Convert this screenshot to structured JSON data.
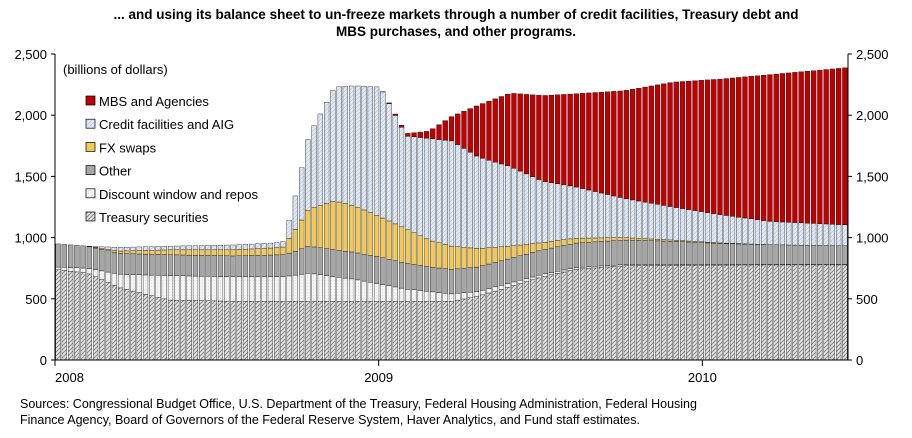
{
  "title": {
    "line1": "... and using its balance sheet to un-freeze markets through a number of credit facilities, Treasury debt and",
    "line2": "MBS purchases, and other programs."
  },
  "sources": {
    "line1": "Sources:  Congressional Budget Office, U.S. Department of the Treasury, Federal Housing Administration, Federal Housing",
    "line2": "Finance  Agency, Board of Governors of the Federal Reserve System, Haver Analytics, and Fund staff estimates."
  },
  "colors": {
    "mbs": "#c00000",
    "credit": "#dce6f2",
    "fx": "#f2c85a",
    "other": "#a6a6a6",
    "discount": "#f0f0f0",
    "treasury": "#cfcfcf"
  },
  "chart_data": {
    "type": "bar",
    "stacked": true,
    "unit_label": "(billions of dollars)",
    "ylim": [
      0,
      2500
    ],
    "yticks": [
      0,
      500,
      1000,
      1500,
      2000,
      2500
    ],
    "ytick_labels": [
      "0",
      "500",
      "1,000",
      "1,500",
      "2,000",
      "2,500"
    ],
    "ytick_labels_right": [
      "0",
      "500",
      "1,000",
      "1,500",
      "2,000",
      "2,500"
    ],
    "x_range": [
      2008.0,
      2010.45
    ],
    "xticks": [
      2008,
      2009,
      2010
    ],
    "xtick_labels": [
      "2008",
      "2009",
      "2010"
    ],
    "grid": false,
    "legend_position": "top-left",
    "bar_interval_years": 0.0192,
    "keyframes": [
      {
        "t": 2008.0,
        "treasury": 740,
        "discount": 20,
        "other": 190,
        "fx": 0,
        "credit": 0,
        "mbs": 0
      },
      {
        "t": 2008.1,
        "treasury": 710,
        "discount": 40,
        "other": 180,
        "fx": 0,
        "credit": 0,
        "mbs": 0
      },
      {
        "t": 2008.2,
        "treasury": 590,
        "discount": 110,
        "other": 170,
        "fx": 20,
        "credit": 30,
        "mbs": 0
      },
      {
        "t": 2008.35,
        "treasury": 490,
        "discount": 200,
        "other": 170,
        "fx": 40,
        "credit": 30,
        "mbs": 0
      },
      {
        "t": 2008.55,
        "treasury": 480,
        "discount": 200,
        "other": 170,
        "fx": 50,
        "credit": 40,
        "mbs": 0
      },
      {
        "t": 2008.7,
        "treasury": 480,
        "discount": 200,
        "other": 180,
        "fx": 60,
        "credit": 40,
        "mbs": 0
      },
      {
        "t": 2008.73,
        "treasury": 480,
        "discount": 210,
        "other": 190,
        "fx": 150,
        "credit": 200,
        "mbs": 0
      },
      {
        "t": 2008.78,
        "treasury": 480,
        "discount": 230,
        "other": 220,
        "fx": 300,
        "credit": 600,
        "mbs": 0
      },
      {
        "t": 2008.86,
        "treasury": 480,
        "discount": 200,
        "other": 220,
        "fx": 400,
        "credit": 930,
        "mbs": 0
      },
      {
        "t": 2008.92,
        "treasury": 480,
        "discount": 180,
        "other": 220,
        "fx": 380,
        "credit": 980,
        "mbs": 0
      },
      {
        "t": 2009.0,
        "treasury": 480,
        "discount": 140,
        "other": 220,
        "fx": 330,
        "credit": 1060,
        "mbs": 0
      },
      {
        "t": 2009.08,
        "treasury": 480,
        "discount": 100,
        "other": 210,
        "fx": 280,
        "credit": 760,
        "mbs": 20
      },
      {
        "t": 2009.15,
        "treasury": 480,
        "discount": 80,
        "other": 200,
        "fx": 220,
        "credit": 830,
        "mbs": 60
      },
      {
        "t": 2009.22,
        "treasury": 480,
        "discount": 60,
        "other": 200,
        "fx": 190,
        "credit": 860,
        "mbs": 200
      },
      {
        "t": 2009.3,
        "treasury": 520,
        "discount": 40,
        "other": 200,
        "fx": 150,
        "credit": 750,
        "mbs": 420
      },
      {
        "t": 2009.4,
        "treasury": 600,
        "discount": 30,
        "other": 200,
        "fx": 100,
        "credit": 650,
        "mbs": 600
      },
      {
        "t": 2009.5,
        "treasury": 680,
        "discount": 20,
        "other": 200,
        "fx": 60,
        "credit": 500,
        "mbs": 700
      },
      {
        "t": 2009.6,
        "treasury": 740,
        "discount": 15,
        "other": 200,
        "fx": 40,
        "credit": 420,
        "mbs": 760
      },
      {
        "t": 2009.75,
        "treasury": 770,
        "discount": 10,
        "other": 200,
        "fx": 20,
        "credit": 320,
        "mbs": 880
      },
      {
        "t": 2009.9,
        "treasury": 775,
        "discount": 5,
        "other": 190,
        "fx": 10,
        "credit": 270,
        "mbs": 1020
      },
      {
        "t": 2010.05,
        "treasury": 776,
        "discount": 5,
        "other": 170,
        "fx": 5,
        "credit": 230,
        "mbs": 1110
      },
      {
        "t": 2010.2,
        "treasury": 777,
        "discount": 5,
        "other": 160,
        "fx": 0,
        "credit": 190,
        "mbs": 1200
      },
      {
        "t": 2010.45,
        "treasury": 777,
        "discount": 5,
        "other": 150,
        "fx": 0,
        "credit": 170,
        "mbs": 1290
      }
    ],
    "series": [
      {
        "key": "mbs",
        "name": "MBS and Agencies",
        "color": "#c00000"
      },
      {
        "key": "credit",
        "name": "Credit facilities and AIG",
        "color": "#dce6f2"
      },
      {
        "key": "fx",
        "name": "FX swaps",
        "color": "#f2c85a"
      },
      {
        "key": "other",
        "name": "Other",
        "color": "#a6a6a6"
      },
      {
        "key": "discount",
        "name": "Discount window and repos",
        "color": "#f0f0f0"
      },
      {
        "key": "treasury",
        "name": "Treasury securities",
        "color": "#cfcfcf"
      }
    ],
    "stack_order": [
      "treasury",
      "discount",
      "other",
      "fx",
      "credit",
      "mbs"
    ]
  }
}
